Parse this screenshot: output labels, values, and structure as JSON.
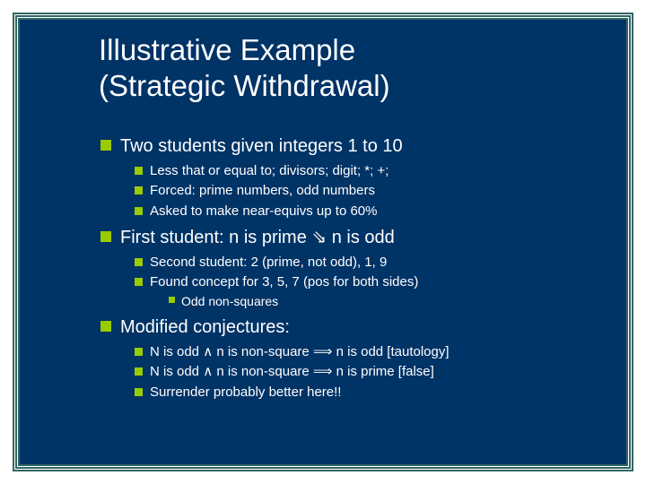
{
  "colors": {
    "slide_bg": "#003366",
    "frame_border": "#336666",
    "bullet": "#99cc00",
    "text": "#ffffff"
  },
  "typography": {
    "title_fontsize": 33,
    "lvl1_fontsize": 20,
    "lvl2_fontsize": 15,
    "lvl3_fontsize": 14,
    "font_family": "Verdana"
  },
  "title_line1": "Illustrative Example",
  "title_line2": "(Strategic Withdrawal)",
  "b1": "Two students given integers 1 to 10",
  "b1_1": "Less that or equal to; divisors; digit; *; +;",
  "b1_2": "Forced: prime numbers, odd numbers",
  "b1_3": "Asked to make near-equivs up to 60%",
  "b2_pre": "First student: n is prime ",
  "b2_sym": "⇘",
  "b2_post": " n is odd",
  "b2_1": "Second student: 2 (prime, not odd), 1, 9",
  "b2_2": "Found concept for 3, 5, 7 (pos for both sides)",
  "b2_2_1": "Odd non-squares",
  "b3": "Modified conjectures:",
  "b3_1_a": "N is odd ",
  "b3_1_sym1": "∧",
  "b3_1_b": " n is non-square ",
  "b3_1_sym2": "⟹",
  "b3_1_c": " n is odd [tautology]",
  "b3_2_a": "N is odd ",
  "b3_2_sym1": "∧",
  "b3_2_b": " n is non-square ",
  "b3_2_sym2": "⟹",
  "b3_2_c": " n is prime [false]",
  "b3_3": "Surrender probably better here!!"
}
